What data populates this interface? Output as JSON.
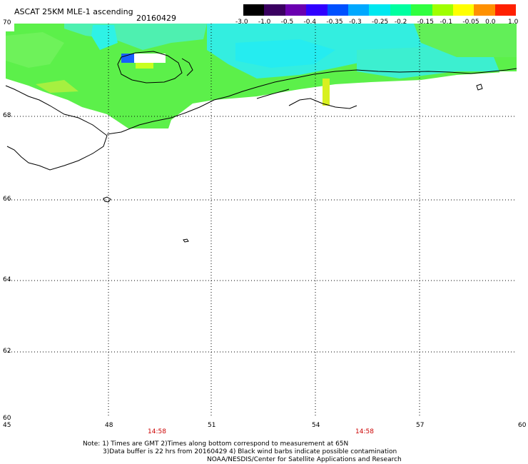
{
  "header": {
    "title": "ASCAT 25KM MLE-1 ascending",
    "date": "20160429"
  },
  "colorbar": {
    "labels": [
      "-3.0",
      "-1.0",
      "-0.5",
      "-0.4",
      "-0.35",
      "-0.3",
      "-0.25",
      "-0.2",
      "-0.15",
      "-0.1",
      "-0.05",
      "0.0",
      "1.0"
    ],
    "colors": [
      "#000000",
      "#3a0060",
      "#6a00b0",
      "#3000ff",
      "#0050ff",
      "#00a8ff",
      "#00e8f0",
      "#00ffa0",
      "#30ff40",
      "#a0ff00",
      "#ffff00",
      "#ff9000",
      "#ff2000"
    ]
  },
  "map": {
    "lat_labels": [
      "70",
      "68",
      "66",
      "64",
      "62",
      "60"
    ],
    "lon_labels": [
      "45",
      "48",
      "51",
      "54",
      "57",
      "60"
    ],
    "lat_range": [
      60,
      70
    ],
    "lon_range": [
      45,
      60
    ],
    "gridlines": "dotted"
  },
  "times": [
    "14:58",
    "14:58"
  ],
  "notes": {
    "line1": "Note: 1) Times are GMT 2)Times along bottom correspond to measurement at 65N",
    "line2": "3)Data buffer is 22 hrs from 20160429 4) Black wind barbs indicate possible contamination",
    "line3": "NOAA/NESDIS/Center for Satellite Applications and Research"
  }
}
